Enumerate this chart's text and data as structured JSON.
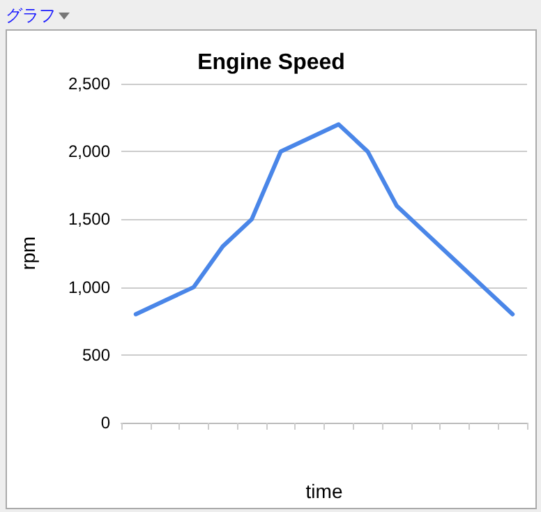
{
  "chart_data": {
    "type": "line",
    "title": "Engine Speed",
    "xlabel": "time",
    "ylabel": "rpm",
    "annotations": [
      "グラフ"
    ],
    "categories": [
      null,
      null,
      null,
      null,
      null,
      null,
      null,
      null,
      null,
      null,
      null,
      null,
      null,
      null
    ],
    "series": [
      {
        "color": "#4a86e8",
        "values": [
          800,
          900,
          1000,
          1300,
          1500,
          2000,
          2100,
          2200,
          2000,
          1600,
          1400,
          1200,
          1000,
          800
        ]
      }
    ],
    "ylim": [
      0,
      2500
    ],
    "yticks": [
      {
        "value": 0,
        "label": "0"
      },
      {
        "value": 500,
        "label": "500"
      },
      {
        "value": 1000,
        "label": "1,000"
      },
      {
        "value": 1500,
        "label": "1,500"
      },
      {
        "value": 2000,
        "label": "2,000"
      },
      {
        "value": 2500,
        "label": "2,500"
      }
    ],
    "grid": "y",
    "marker": "none",
    "line_style": "solid"
  }
}
